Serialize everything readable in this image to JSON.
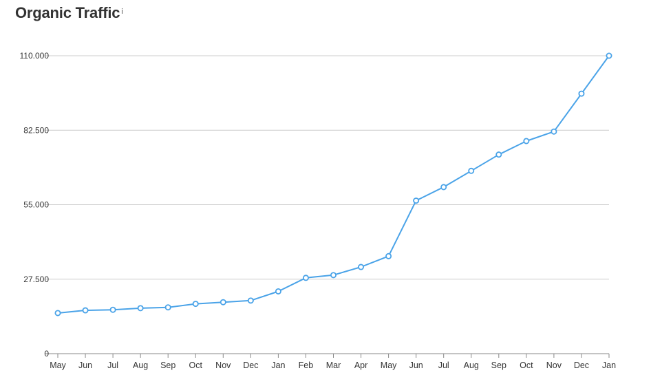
{
  "title": "Organic Traffic",
  "title_info_marker": "i",
  "chart_data": {
    "type": "line",
    "title": "Organic Traffic",
    "xlabel": "",
    "ylabel": "",
    "categories": [
      "May",
      "Jun",
      "Jul",
      "Aug",
      "Sep",
      "Oct",
      "Nov",
      "Dec",
      "Jan",
      "Feb",
      "Mar",
      "Apr",
      "May",
      "Jun",
      "Jul",
      "Aug",
      "Sep",
      "Oct",
      "Nov",
      "Dec",
      "Jan"
    ],
    "series": [
      {
        "values": [
          15000,
          16000,
          16200,
          16800,
          17100,
          18400,
          19000,
          19600,
          23000,
          28000,
          29000,
          32000,
          36000,
          56500,
          61500,
          67500,
          73500,
          78500,
          82000,
          96000,
          110000
        ],
        "color": "#4aa3e8"
      }
    ],
    "ylim": [
      0,
      110000
    ],
    "yticks": [
      0,
      27500,
      55000,
      82500,
      110000
    ],
    "ytick_labels": [
      "0",
      "27.500",
      "55.000",
      "82.500",
      "110.000"
    ],
    "grid": true,
    "gridline_color": "#cccccc",
    "legend": "none"
  }
}
